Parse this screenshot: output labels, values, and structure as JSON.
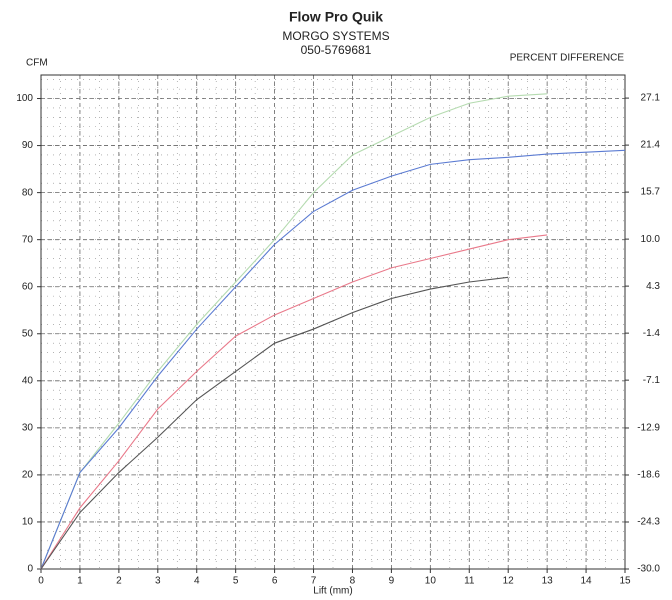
{
  "chart_data": {
    "type": "line",
    "title": "Flow Pro Quik",
    "subtitle": "MORGO SYSTEMS",
    "phone": "050-5769681",
    "y_label": "CFM",
    "y2_label": "PERCENT DIFFERENCE",
    "x_label": "Lift (mm)",
    "x": [
      0,
      1,
      2,
      3,
      4,
      5,
      6,
      7,
      8,
      9,
      10,
      11,
      12,
      13,
      14,
      15
    ],
    "xlim": [
      0,
      15
    ],
    "xticks": [
      0,
      1,
      2,
      3,
      4,
      5,
      6,
      7,
      8,
      9,
      10,
      11,
      12,
      13,
      14,
      15
    ],
    "ylim": [
      0,
      105
    ],
    "yticks": [
      0,
      10,
      20,
      30,
      40,
      50,
      60,
      70,
      80,
      90,
      100
    ],
    "y2lim": [
      -30,
      29.9
    ],
    "y2ticks": [
      {
        "value": -30,
        "label": "-30.0"
      },
      -24.3,
      -18.6,
      -12.9,
      -7.1,
      -1.4,
      4.3,
      {
        "value": 10,
        "label": "10.0"
      },
      15.7,
      21.4,
      27.1
    ],
    "grid": true,
    "series": [
      {
        "color": "#b5dbb0",
        "values": [
          0,
          20.5,
          31,
          42,
          52,
          61,
          70,
          80,
          88,
          92,
          96,
          99,
          100.5,
          101,
          null,
          null
        ]
      },
      {
        "color": "#5b7bd2",
        "values": [
          0,
          20.5,
          30,
          41,
          51,
          60,
          69,
          76,
          80.5,
          83.5,
          86,
          87,
          87.5,
          88.2,
          88.6,
          89
        ]
      },
      {
        "color": "#e9798a",
        "values": [
          0,
          13,
          23,
          34,
          42,
          49.5,
          54,
          57.5,
          61,
          64,
          66,
          68,
          70,
          71,
          null,
          null
        ]
      },
      {
        "color": "#555555",
        "values": [
          0,
          12,
          20.5,
          28,
          36,
          42,
          48,
          51,
          54.5,
          57.5,
          59.5,
          61,
          62,
          null,
          null,
          null
        ]
      }
    ]
  }
}
